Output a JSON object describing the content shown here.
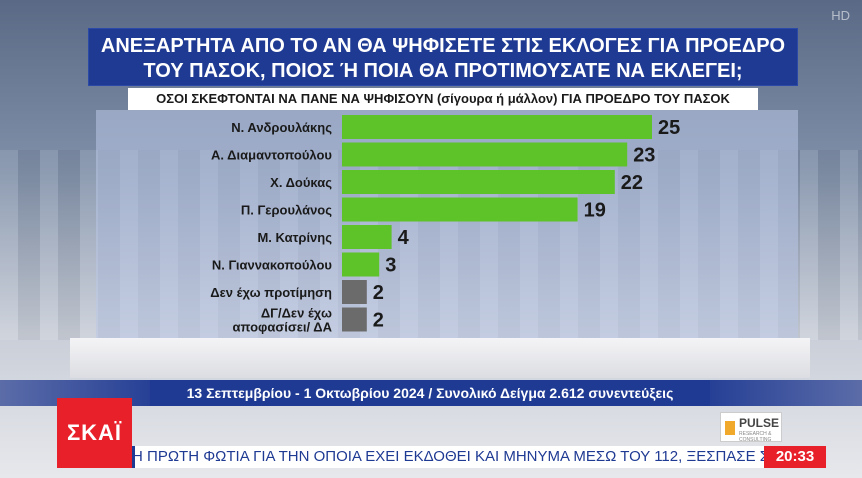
{
  "overlay": {
    "hd": "HD"
  },
  "header": {
    "title_line1": "ΑΝΕΞΑΡΤΗΤΑ ΑΠΟ ΤΟ ΑΝ ΘΑ ΨΗΦΙΣΕΤΕ ΣΤΙΣ ΕΚΛΟΓΕΣ ΓΙΑ ΠΡΟΕΔΡΟ",
    "title_line2": "ΤΟΥ ΠΑΣΟΚ, ΠΟΙΟΣ Ή ΠΟΙΑ ΘΑ ΠΡΟΤΙΜΟΥΣΑΤΕ ΝΑ ΕΚΛΕΓΕΙ;",
    "subtitle": "ΟΣΟΙ ΣΚΕΦΤΟΝΤΑΙ ΝΑ ΠΑΝΕ ΝΑ ΨΗΦΙΣΟΥΝ (σίγουρα ή μάλλον) ΓΙΑ ΠΡΟΕΔΡΟ ΤΟΥ ΠΑΣΟΚ"
  },
  "chart_data": {
    "type": "bar",
    "orientation": "horizontal",
    "categories": [
      [
        "Ν. Ανδρουλάκης"
      ],
      [
        "Α. Διαμαντοπούλου"
      ],
      [
        "Χ. Δούκας"
      ],
      [
        "Π. Γερουλάνος"
      ],
      [
        "Μ. Κατρίνης"
      ],
      [
        "Ν. Γιαννακοπούλου"
      ],
      [
        "Δεν έχω προτίμηση"
      ],
      [
        "ΔΓ/Δεν έχω",
        "αποφασίσει/ ΔΑ"
      ]
    ],
    "values": [
      25,
      23,
      22,
      19,
      4,
      3,
      2,
      2
    ],
    "bar_colors": [
      "#5ec229",
      "#5ec229",
      "#5ec229",
      "#5ec229",
      "#5ec229",
      "#5ec229",
      "#6b6b6b",
      "#6b6b6b"
    ],
    "xlim": [
      0,
      25
    ]
  },
  "footer": {
    "date_sample": "13 Σεπτεμβρίου - 1 Οκτωβρίου 2024 / Συνολικό Δείγμα 2.612 συνεντεύξεις"
  },
  "branding": {
    "channel_logo": "ΣΚΑΪ",
    "pollster": "PULSE",
    "pollster_sub": "RESEARCH & CONSULTING"
  },
  "ticker": {
    "text": "Η ΠΡΩΤΗ ΦΩΤΙΑ ΓΙΑ ΤΗΝ ΟΠΟΙΑ ΕΧΕΙ ΕΚΔΟΘΕΙ ΚΑΙ ΜΗΝΥΜΑ ΜΕΣΩ ΤΟΥ 112, ΞΕΣΠΑΣΕ ΣΕ ΔΑΣΙ",
    "time": "20:33"
  },
  "colors": {
    "accent_blue": "#1f3a93",
    "bar_green": "#5ec229",
    "bar_gray": "#6b6b6b",
    "brand_red": "#e8202a"
  }
}
